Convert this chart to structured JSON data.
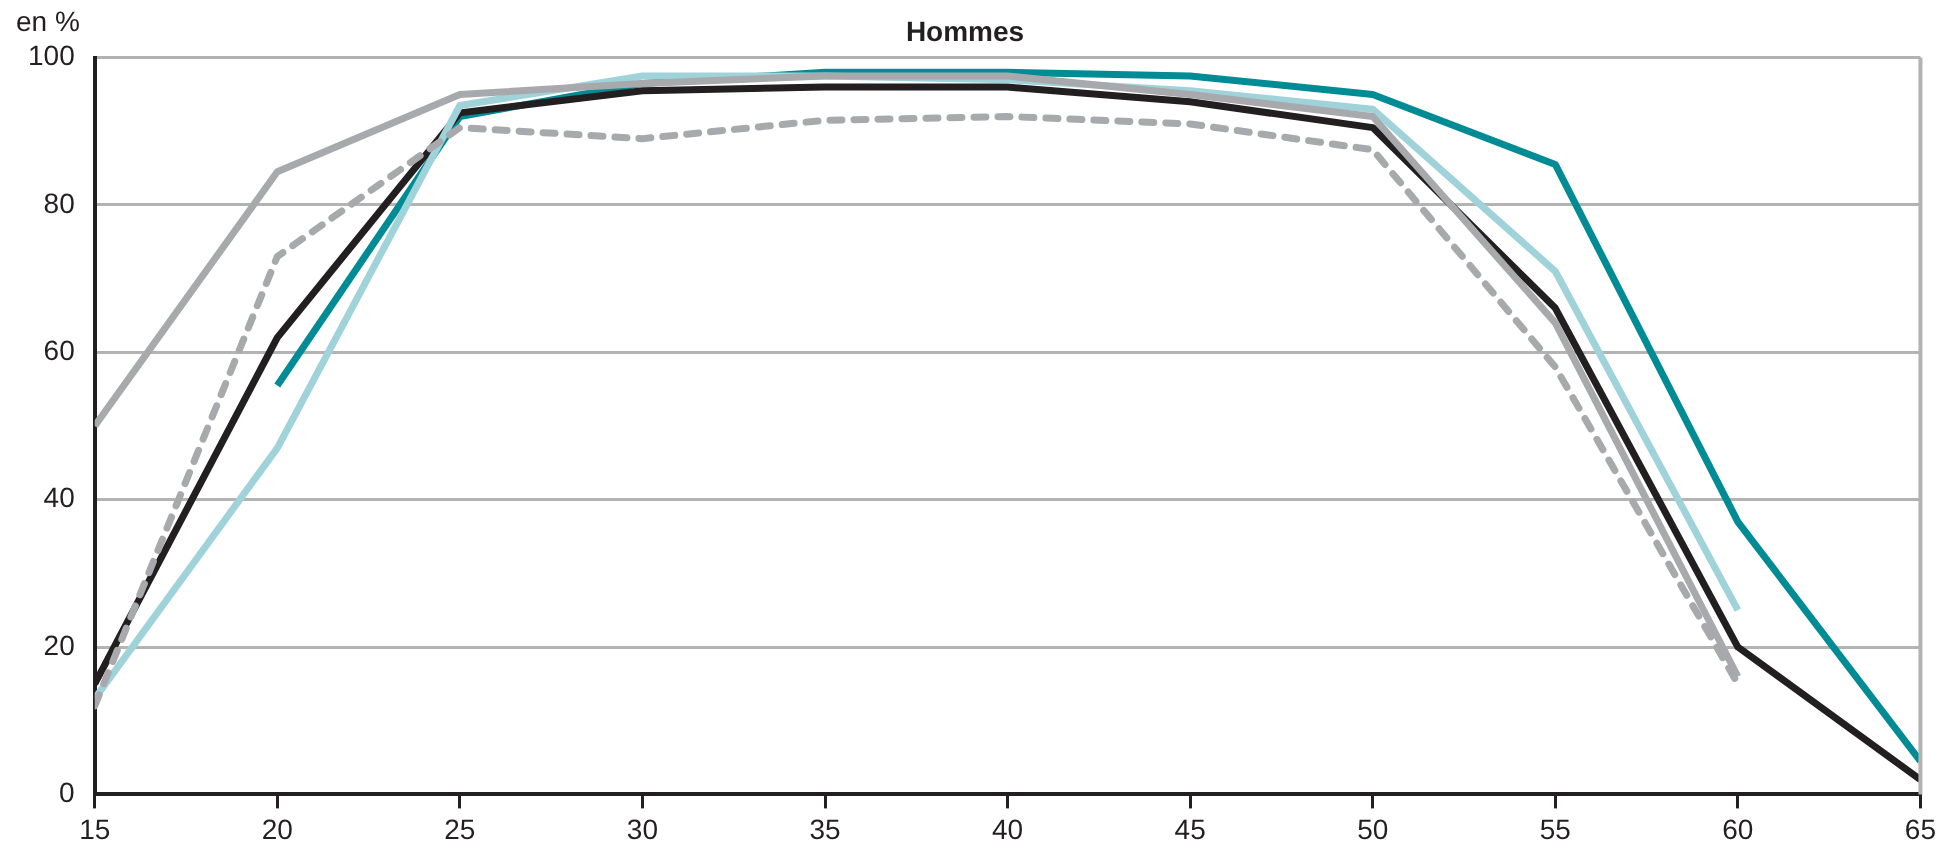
{
  "chart_data": {
    "type": "line",
    "title": "Hommes",
    "ylabel": "en %",
    "x": [
      15,
      20,
      25,
      30,
      35,
      40,
      45,
      50,
      55,
      60,
      65
    ],
    "series": [
      {
        "color": "#a7a9ac",
        "values": [
          50,
          84.5,
          95,
          96.5,
          97.5,
          97.5,
          95,
          92,
          64,
          16,
          null
        ]
      },
      {
        "color": "#a7a9ac",
        "line_style": "dashed",
        "values": [
          12,
          73,
          90.5,
          89,
          91.5,
          92,
          91,
          87.5,
          58,
          15,
          null
        ]
      },
      {
        "color": "#9fd3d9",
        "values": [
          13,
          47,
          93.5,
          97.5,
          97.5,
          97,
          95.5,
          93,
          71,
          25,
          null
        ]
      },
      {
        "color": "#231f20",
        "values": [
          15,
          62,
          92.5,
          95.5,
          96,
          96,
          94,
          90.5,
          66,
          20,
          2
        ]
      },
      {
        "color": "#008b95",
        "values": [
          null,
          55.5,
          92,
          96.5,
          98,
          98,
          97.5,
          95,
          85.5,
          37,
          4.5
        ]
      }
    ],
    "xlim": [
      15,
      65
    ],
    "xticks": [
      15,
      20,
      25,
      30,
      35,
      40,
      45,
      50,
      55,
      60,
      65
    ],
    "ylim": [
      0,
      100
    ],
    "yticks": [
      0,
      20,
      40,
      60,
      80,
      100
    ],
    "grid": "y",
    "legend": false,
    "marker": "none",
    "line_style": "solid"
  }
}
